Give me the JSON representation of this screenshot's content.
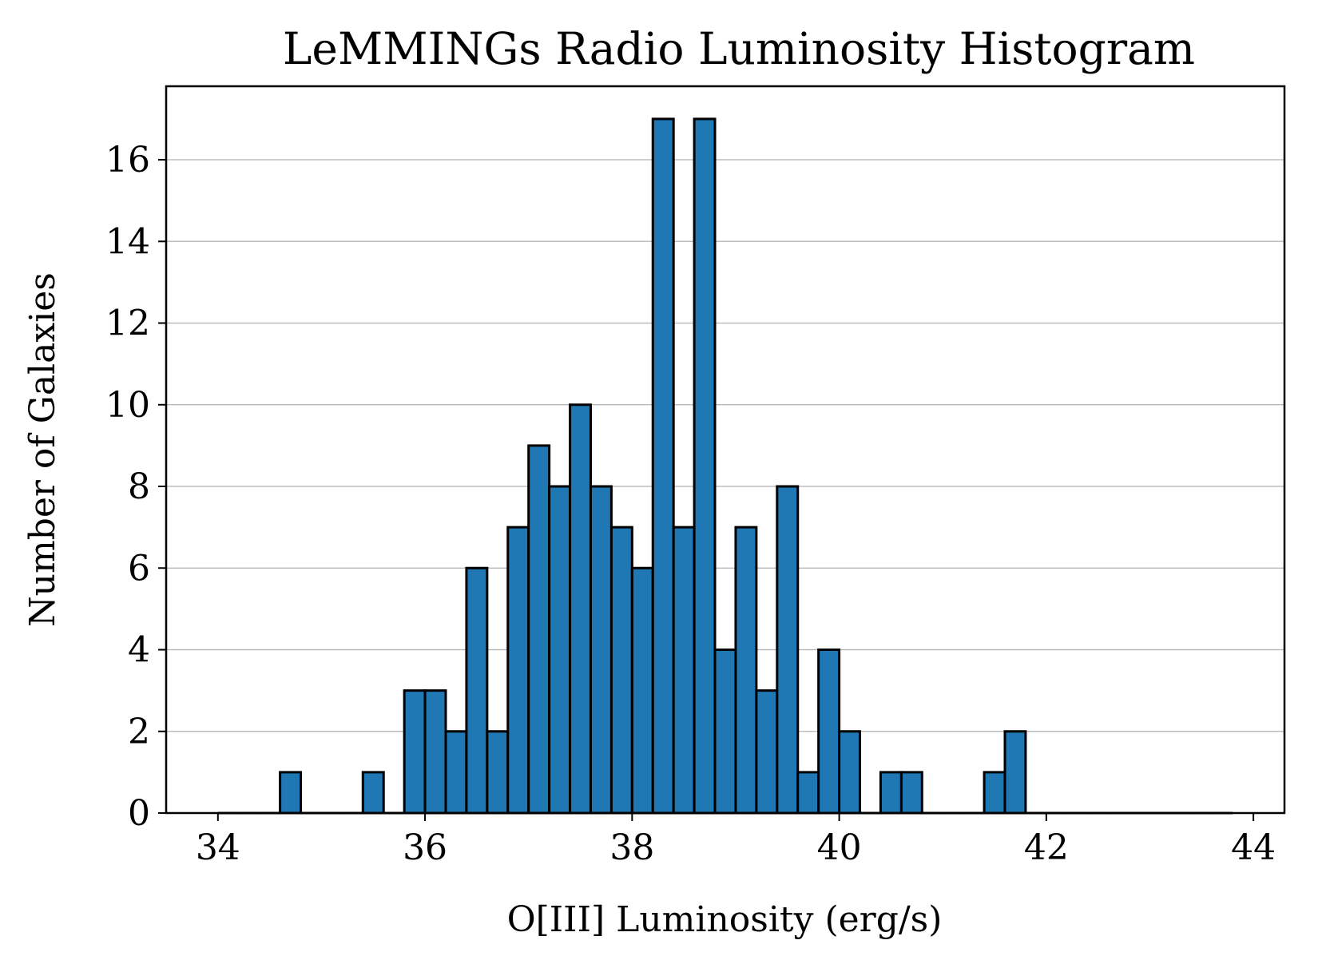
{
  "chart_data": {
    "type": "bar",
    "title": "LeMMINGs Radio Luminosity Histogram",
    "xlabel": "O[III] Luminosity (erg/s)",
    "ylabel": "Number of Galaxies",
    "xlim": [
      33.5,
      44.3
    ],
    "ylim": [
      0,
      17.8
    ],
    "xticks": [
      34,
      36,
      38,
      40,
      42,
      44
    ],
    "yticks": [
      0,
      2,
      4,
      6,
      8,
      10,
      12,
      14,
      16
    ],
    "grid": "horizontal",
    "bar_color": "#1f77b4",
    "edge_color": "#000000",
    "bin_width": 0.2,
    "range": [
      34.0,
      43.8
    ],
    "bin_starts": [
      34.0,
      34.2,
      34.4,
      34.6,
      34.8,
      35.0,
      35.2,
      35.4,
      35.6,
      35.8,
      36.0,
      36.2,
      36.4,
      36.6,
      36.8,
      37.0,
      37.2,
      37.4,
      37.6,
      37.8,
      38.0,
      38.2,
      38.4,
      38.6,
      38.8,
      39.0,
      39.2,
      39.4,
      39.6,
      39.8,
      40.0,
      40.2,
      40.4,
      40.6,
      40.8,
      41.0,
      41.2,
      41.4,
      41.6,
      41.8,
      42.0,
      42.2,
      42.4,
      42.6,
      42.8,
      43.0,
      43.2,
      43.4,
      43.6
    ],
    "values": [
      0,
      0,
      0,
      1,
      0,
      0,
      0,
      1,
      0,
      3,
      3,
      2,
      6,
      2,
      7,
      9,
      8,
      10,
      8,
      7,
      6,
      17,
      7,
      17,
      4,
      7,
      3,
      8,
      1,
      4,
      2,
      0,
      1,
      1,
      0,
      0,
      0,
      1,
      2,
      0,
      0,
      0,
      0,
      0,
      0,
      0,
      0,
      0,
      0
    ]
  }
}
